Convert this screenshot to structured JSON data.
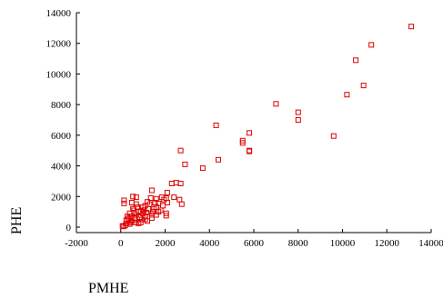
{
  "chart_data": {
    "type": "scatter",
    "title": "",
    "xlabel": "PMHE",
    "ylabel": "PHE",
    "xlim": [
      -2000,
      14000
    ],
    "ylim": [
      0,
      14000
    ],
    "xticks": [
      "-2000",
      "0",
      "2000",
      "4000",
      "6000",
      "8000",
      "10000",
      "12000",
      "14000"
    ],
    "yticks": [
      "0",
      "2000",
      "4000",
      "6000",
      "8000",
      "10000",
      "12000",
      "14000"
    ],
    "grid": false,
    "marker": "open-square",
    "color": "#dd0000",
    "points": [
      [
        13100,
        13100
      ],
      [
        11300,
        11900
      ],
      [
        10600,
        10900
      ],
      [
        10950,
        9250
      ],
      [
        10200,
        8650
      ],
      [
        9600,
        5950
      ],
      [
        7000,
        8050
      ],
      [
        8000,
        7500
      ],
      [
        8000,
        7000
      ],
      [
        5800,
        6150
      ],
      [
        5500,
        5650
      ],
      [
        5500,
        5500
      ],
      [
        5800,
        5000
      ],
      [
        5800,
        4950
      ],
      [
        4300,
        6650
      ],
      [
        4400,
        4400
      ],
      [
        3700,
        3850
      ],
      [
        2700,
        5000
      ],
      [
        2900,
        4100
      ],
      [
        2500,
        2900
      ],
      [
        2700,
        2850
      ],
      [
        2300,
        2850
      ],
      [
        2750,
        1500
      ],
      [
        2650,
        1800
      ],
      [
        2400,
        1950
      ],
      [
        2100,
        2250
      ],
      [
        2050,
        1900
      ],
      [
        1950,
        1800
      ],
      [
        2100,
        1600
      ],
      [
        1900,
        1400
      ],
      [
        1850,
        1950
      ],
      [
        2050,
        900
      ],
      [
        2050,
        750
      ],
      [
        1600,
        1300
      ],
      [
        1700,
        1550
      ],
      [
        1450,
        1000
      ],
      [
        1550,
        1600
      ],
      [
        1350,
        1900
      ],
      [
        1400,
        2400
      ],
      [
        1600,
        1850
      ],
      [
        1200,
        1650
      ],
      [
        1100,
        1400
      ],
      [
        1250,
        1200
      ],
      [
        1050,
        1100
      ],
      [
        1000,
        900
      ],
      [
        1150,
        950
      ],
      [
        900,
        1050
      ],
      [
        1100,
        700
      ],
      [
        950,
        500
      ],
      [
        850,
        650
      ],
      [
        750,
        1300
      ],
      [
        700,
        800
      ],
      [
        800,
        250
      ],
      [
        600,
        950
      ],
      [
        650,
        500
      ],
      [
        550,
        1200
      ],
      [
        700,
        1950
      ],
      [
        550,
        2000
      ],
      [
        500,
        1600
      ],
      [
        450,
        700
      ],
      [
        350,
        400
      ],
      [
        300,
        700
      ],
      [
        400,
        200
      ],
      [
        450,
        300
      ],
      [
        250,
        450
      ],
      [
        200,
        100
      ],
      [
        150,
        1550
      ],
      [
        150,
        1750
      ],
      [
        120,
        50
      ],
      [
        80,
        80
      ],
      [
        250,
        250
      ],
      [
        350,
        550
      ],
      [
        600,
        600
      ],
      [
        900,
        300
      ],
      [
        1200,
        400
      ],
      [
        1400,
        600
      ],
      [
        1600,
        800
      ],
      [
        1800,
        1100
      ],
      [
        1500,
        1200
      ],
      [
        1300,
        1500
      ],
      [
        1000,
        1300
      ],
      [
        800,
        1000
      ],
      [
        700,
        1500
      ],
      [
        600,
        1100
      ],
      [
        400,
        900
      ],
      [
        500,
        400
      ],
      [
        650,
        300
      ],
      [
        1100,
        500
      ],
      [
        1400,
        800
      ],
      [
        1700,
        1000
      ]
    ]
  }
}
